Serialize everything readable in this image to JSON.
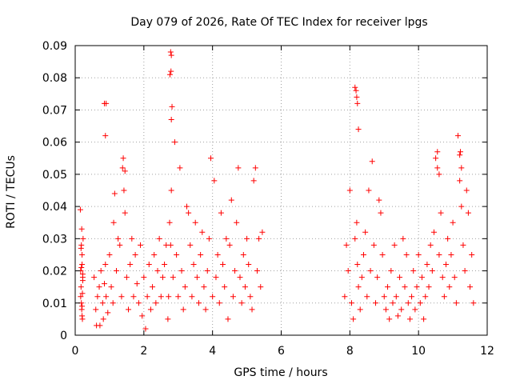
{
  "chart_data": {
    "type": "scatter",
    "title": "Day 079 of 2026, Rate Of TEC Index for receiver lpgs",
    "xlabel": "GPS time / hours",
    "ylabel": "ROTI / TECUs",
    "xlim": [
      0,
      12
    ],
    "ylim": [
      0,
      0.09
    ],
    "xticks": [
      0,
      2,
      4,
      6,
      8,
      10,
      12
    ],
    "xtick_labels": [
      "0",
      "2",
      "4",
      "6",
      "8",
      "10",
      "12"
    ],
    "yticks": [
      0,
      0.01,
      0.02,
      0.03,
      0.04,
      0.05,
      0.06,
      0.07,
      0.08,
      0.09
    ],
    "ytick_labels": [
      "0",
      "0.01",
      "0.02",
      "0.03",
      "0.04",
      "0.05",
      "0.06",
      "0.07",
      "0.08",
      "0.09"
    ],
    "grid": true,
    "marker": "plus",
    "series": [
      {
        "name": "ROTI",
        "color": "#ff0000",
        "x": [
          0.15,
          0.18,
          0.2,
          0.22,
          0.16,
          0.19,
          0.21,
          0.17,
          0.2,
          0.23,
          0.16,
          0.18,
          0.2,
          0.22,
          0.19,
          0.17,
          0.21,
          0.2,
          0.18,
          0.22,
          0.55,
          0.6,
          0.62,
          0.65,
          0.7,
          0.72,
          0.75,
          0.8,
          0.82,
          0.85,
          0.88,
          0.9,
          0.95,
          1.0,
          1.05,
          1.1,
          1.12,
          1.15,
          1.2,
          1.25,
          1.3,
          1.35,
          1.38,
          1.4,
          1.42,
          1.45,
          1.5,
          1.55,
          1.6,
          1.65,
          1.7,
          1.75,
          1.8,
          1.85,
          1.9,
          1.95,
          2.0,
          2.05,
          2.1,
          2.15,
          2.2,
          2.25,
          2.3,
          2.35,
          2.4,
          2.45,
          2.5,
          2.55,
          2.6,
          2.65,
          2.7,
          2.72,
          2.75,
          2.78,
          2.8,
          2.85,
          2.9,
          2.95,
          3.0,
          3.05,
          3.1,
          3.15,
          3.2,
          3.25,
          3.3,
          3.35,
          3.4,
          3.45,
          3.5,
          3.55,
          3.6,
          3.65,
          3.7,
          3.75,
          3.8,
          3.85,
          3.9,
          3.95,
          4.0,
          4.05,
          4.1,
          4.15,
          4.2,
          4.25,
          4.3,
          4.35,
          4.4,
          4.45,
          4.5,
          4.55,
          4.6,
          4.65,
          4.7,
          4.75,
          4.8,
          4.85,
          4.9,
          4.95,
          5.0,
          5.05,
          5.1,
          5.15,
          5.2,
          5.25,
          5.3,
          5.35,
          5.4,
          5.45,
          7.85,
          7.9,
          7.95,
          8.0,
          8.05,
          8.1,
          8.15,
          8.2,
          8.22,
          8.25,
          8.3,
          8.35,
          8.4,
          8.45,
          8.5,
          8.55,
          8.6,
          8.65,
          8.7,
          8.75,
          8.8,
          8.85,
          8.9,
          8.95,
          9.0,
          9.05,
          9.1,
          9.15,
          9.2,
          9.25,
          9.3,
          9.35,
          9.4,
          9.45,
          9.5,
          9.55,
          9.6,
          9.65,
          9.7,
          9.75,
          9.8,
          9.85,
          9.9,
          9.95,
          10.0,
          10.05,
          10.1,
          10.15,
          10.2,
          10.25,
          10.3,
          10.35,
          10.4,
          10.45,
          10.5,
          10.55,
          10.6,
          10.65,
          10.7,
          10.75,
          10.8,
          10.85,
          10.9,
          10.95,
          11.0,
          11.05,
          11.1,
          11.15,
          11.2,
          11.25,
          11.3,
          11.35,
          11.4,
          11.45,
          11.5,
          11.55,
          11.6,
          0.85,
          0.88,
          0.9,
          2.78,
          2.8,
          2.79,
          2.76,
          2.82,
          2.8,
          8.15,
          8.18,
          8.2,
          8.22,
          8.25,
          11.2,
          11.22,
          11.25,
          10.55,
          10.6,
          1.45
        ],
        "y": [
          0.039,
          0.028,
          0.022,
          0.018,
          0.012,
          0.008,
          0.005,
          0.015,
          0.025,
          0.03,
          0.02,
          0.01,
          0.006,
          0.017,
          0.033,
          0.027,
          0.013,
          0.009,
          0.021,
          0.019,
          0.018,
          0.008,
          0.003,
          0.012,
          0.015,
          0.003,
          0.02,
          0.01,
          0.005,
          0.016,
          0.022,
          0.012,
          0.007,
          0.025,
          0.015,
          0.01,
          0.035,
          0.044,
          0.02,
          0.03,
          0.028,
          0.012,
          0.052,
          0.055,
          0.045,
          0.038,
          0.018,
          0.008,
          0.022,
          0.03,
          0.012,
          0.025,
          0.016,
          0.01,
          0.028,
          0.006,
          0.018,
          0.002,
          0.012,
          0.022,
          0.008,
          0.015,
          0.025,
          0.01,
          0.02,
          0.03,
          0.012,
          0.018,
          0.022,
          0.028,
          0.005,
          0.012,
          0.035,
          0.028,
          0.045,
          0.018,
          0.06,
          0.025,
          0.012,
          0.052,
          0.02,
          0.008,
          0.015,
          0.04,
          0.038,
          0.028,
          0.012,
          0.022,
          0.035,
          0.018,
          0.01,
          0.025,
          0.032,
          0.015,
          0.008,
          0.02,
          0.03,
          0.055,
          0.012,
          0.048,
          0.018,
          0.025,
          0.01,
          0.038,
          0.022,
          0.015,
          0.03,
          0.005,
          0.028,
          0.042,
          0.012,
          0.02,
          0.035,
          0.052,
          0.018,
          0.01,
          0.025,
          0.015,
          0.03,
          0.022,
          0.012,
          0.008,
          0.048,
          0.052,
          0.02,
          0.03,
          0.015,
          0.032,
          0.012,
          0.028,
          0.02,
          0.045,
          0.01,
          0.005,
          0.03,
          0.035,
          0.022,
          0.015,
          0.008,
          0.018,
          0.025,
          0.032,
          0.012,
          0.045,
          0.02,
          0.054,
          0.028,
          0.01,
          0.018,
          0.042,
          0.038,
          0.025,
          0.012,
          0.008,
          0.015,
          0.005,
          0.02,
          0.01,
          0.028,
          0.012,
          0.006,
          0.018,
          0.008,
          0.03,
          0.015,
          0.025,
          0.01,
          0.005,
          0.012,
          0.02,
          0.008,
          0.015,
          0.025,
          0.01,
          0.018,
          0.005,
          0.012,
          0.022,
          0.015,
          0.028,
          0.02,
          0.032,
          0.055,
          0.052,
          0.025,
          0.038,
          0.018,
          0.012,
          0.022,
          0.03,
          0.015,
          0.025,
          0.035,
          0.018,
          0.01,
          0.062,
          0.048,
          0.04,
          0.028,
          0.02,
          0.045,
          0.038,
          0.015,
          0.025,
          0.01,
          0.072,
          0.062,
          0.072,
          0.088,
          0.087,
          0.082,
          0.081,
          0.071,
          0.067,
          0.077,
          0.076,
          0.074,
          0.072,
          0.064,
          0.056,
          0.057,
          0.052,
          0.057,
          0.05,
          0.051
        ]
      }
    ]
  }
}
